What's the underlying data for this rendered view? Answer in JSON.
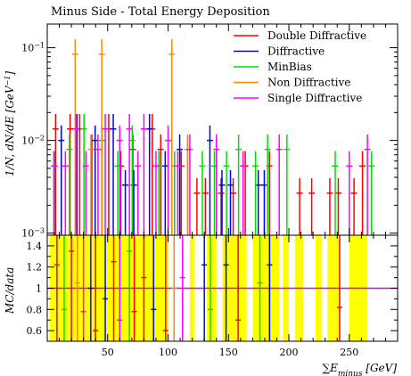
{
  "chart_data": [
    {
      "type": "line",
      "title": "Minus Side - Total Energy Deposition",
      "ylabel": "1/N, dN/dE [GeV^-1]",
      "xlabel": "",
      "yscale": "log",
      "xlim": [
        0,
        290
      ],
      "ylim": [
        0.00095,
        0.18
      ],
      "yticks": [
        {
          "value": 0.001,
          "label": "10^-3"
        },
        {
          "value": 0.01,
          "label": "10^-2"
        },
        {
          "value": 0.1,
          "label": "10^-1"
        }
      ],
      "legend_position": "top-right",
      "series": [
        {
          "name": "Double Diffractive",
          "color": "#ff0000",
          "points": [
            [
              8,
              0.0133
            ],
            [
              20,
              0.0133
            ],
            [
              28,
              0.0133
            ],
            [
              38,
              0.008
            ],
            [
              52,
              0.0133
            ],
            [
              62,
              0.0053
            ],
            [
              72,
              0.008
            ],
            [
              88,
              0.0133
            ],
            [
              95,
              0.008
            ],
            [
              112,
              0.0053
            ],
            [
              125,
              0.0027
            ],
            [
              132,
              0.0027
            ],
            [
              145,
              0.0027
            ],
            [
              155,
              0.0027
            ],
            [
              165,
              0.0053
            ],
            [
              185,
              0.0053
            ],
            [
              210,
              0.0027
            ],
            [
              220,
              0.0027
            ],
            [
              235,
              0.0027
            ],
            [
              242,
              0.0027
            ],
            [
              255,
              0.0027
            ],
            [
              262,
              0.0053
            ]
          ]
        },
        {
          "name": "Diffractive",
          "color": "#0000ff",
          "points": [
            [
              12,
              0.01
            ],
            [
              25,
              0.0133
            ],
            [
              40,
              0.01
            ],
            [
              55,
              0.0133
            ],
            [
              65,
              0.0033
            ],
            [
              72,
              0.0033
            ],
            [
              85,
              0.0133
            ],
            [
              98,
              0.0053
            ],
            [
              110,
              0.008
            ],
            [
              135,
              0.01
            ],
            [
              145,
              0.0033
            ],
            [
              152,
              0.0033
            ],
            [
              175,
              0.0033
            ],
            [
              180,
              0.0033
            ]
          ]
        },
        {
          "name": "MinBias",
          "color": "#00dd00",
          "points": [
            [
              5,
              0.0053
            ],
            [
              18,
              0.008
            ],
            [
              30,
              0.0133
            ],
            [
              45,
              0.01
            ],
            [
              58,
              0.0053
            ],
            [
              70,
              0.01
            ],
            [
              92,
              0.0053
            ],
            [
              105,
              0.0053
            ],
            [
              128,
              0.0053
            ],
            [
              138,
              0.0053
            ],
            [
              148,
              0.0053
            ],
            [
              158,
              0.008
            ],
            [
              172,
              0.0053
            ],
            [
              182,
              0.008
            ],
            [
              198,
              0.008
            ],
            [
              238,
              0.0053
            ],
            [
              268,
              0.0053
            ]
          ]
        },
        {
          "name": "Non Diffractive",
          "color": "#ff8800",
          "points": [
            [
              22,
              0.085
            ],
            [
              35,
              0.008
            ],
            [
              44,
              0.085
            ],
            [
              102,
              0.085
            ],
            [
              115,
              0.008
            ]
          ]
        },
        {
          "name": "Single Diffractive",
          "color": "#ff00ff",
          "points": [
            [
              6,
              0.0053
            ],
            [
              15,
              0.0053
            ],
            [
              24,
              0.0133
            ],
            [
              32,
              0.0053
            ],
            [
              42,
              0.008
            ],
            [
              48,
              0.0133
            ],
            [
              60,
              0.01
            ],
            [
              68,
              0.0133
            ],
            [
              75,
              0.0053
            ],
            [
              80,
              0.0133
            ],
            [
              90,
              0.0053
            ],
            [
              100,
              0.01
            ],
            [
              108,
              0.0053
            ],
            [
              118,
              0.008
            ],
            [
              140,
              0.008
            ],
            [
              162,
              0.0053
            ],
            [
              192,
              0.008
            ],
            [
              250,
              0.0053
            ],
            [
              265,
              0.008
            ]
          ]
        }
      ]
    },
    {
      "type": "line",
      "ylabel": "MC/data",
      "xlabel": "∑E_minus [GeV]",
      "xlim": [
        0,
        290
      ],
      "ylim": [
        0.5,
        1.5
      ],
      "xticks": [
        50,
        100,
        150,
        200,
        250
      ],
      "yticks": [
        0.6,
        0.8,
        1,
        1.2,
        1.4
      ],
      "band_color": "#ffff00",
      "reference_color": "#dd00dd",
      "reference_value": 1.0,
      "bands": [
        [
          2,
          100
        ],
        [
          118,
          122
        ],
        [
          132,
          140
        ],
        [
          145,
          165
        ],
        [
          170,
          192
        ],
        [
          195,
          200
        ],
        [
          205,
          212
        ],
        [
          222,
          227
        ],
        [
          232,
          242
        ],
        [
          250,
          265
        ]
      ],
      "points": [
        {
          "x": 8,
          "y": 1.22,
          "color": "#ff0000"
        },
        {
          "x": 14,
          "y": 0.8,
          "color": "#00dd00"
        },
        {
          "x": 20,
          "y": 1.35,
          "color": "#ff0000"
        },
        {
          "x": 25,
          "y": 1.05,
          "color": "#ff8800"
        },
        {
          "x": 30,
          "y": 0.78,
          "color": "#ff00ff"
        },
        {
          "x": 36,
          "y": 1.0,
          "color": "#0000ff"
        },
        {
          "x": 40,
          "y": 0.6,
          "color": "#ff0000"
        },
        {
          "x": 48,
          "y": 0.9,
          "color": "#0000ff"
        },
        {
          "x": 55,
          "y": 1.25,
          "color": "#ff0000"
        },
        {
          "x": 60,
          "y": 0.7,
          "color": "#ff00ff"
        },
        {
          "x": 68,
          "y": 1.35,
          "color": "#00dd00"
        },
        {
          "x": 72,
          "y": 0.78,
          "color": "#ff0000"
        },
        {
          "x": 80,
          "y": 1.1,
          "color": "#ff0000"
        },
        {
          "x": 88,
          "y": 0.8,
          "color": "#0000ff"
        },
        {
          "x": 98,
          "y": 0.6,
          "color": "#ff0000"
        },
        {
          "x": 105,
          "y": 1.0,
          "color": "#ff8800"
        },
        {
          "x": 112,
          "y": 1.1,
          "color": "#ff00ff"
        },
        {
          "x": 130,
          "y": 1.22,
          "color": "#0000ff"
        },
        {
          "x": 135,
          "y": 0.8,
          "color": "#00dd00"
        },
        {
          "x": 148,
          "y": 1.22,
          "color": "#0000ff"
        },
        {
          "x": 158,
          "y": 0.7,
          "color": "#ff0000"
        },
        {
          "x": 176,
          "y": 1.05,
          "color": "#00dd00"
        },
        {
          "x": 184,
          "y": 1.22,
          "color": "#0000ff"
        },
        {
          "x": 242,
          "y": 0.82,
          "color": "#ff0000"
        }
      ]
    }
  ]
}
